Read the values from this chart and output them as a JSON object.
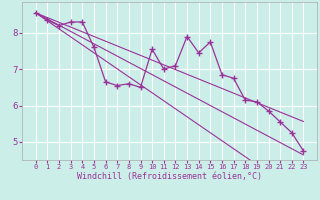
{
  "xlabel": "Windchill (Refroidissement éolien,°C)",
  "background_color": "#cceee8",
  "grid_color": "#ffffff",
  "line_color": "#993399",
  "x": [
    0,
    1,
    2,
    3,
    4,
    5,
    6,
    7,
    8,
    9,
    10,
    11,
    12,
    13,
    14,
    15,
    16,
    17,
    18,
    19,
    20,
    21,
    22,
    23
  ],
  "y_series1": [
    8.55,
    8.35,
    8.2,
    8.3,
    8.3,
    7.6,
    6.65,
    6.55,
    6.6,
    6.5,
    7.55,
    7.0,
    7.1,
    7.9,
    7.45,
    7.75,
    6.85,
    6.75,
    6.15,
    6.1,
    5.85,
    5.55,
    5.25,
    4.75
  ],
  "y_linear1": [
    8.55,
    8.42,
    8.29,
    8.16,
    8.03,
    7.9,
    7.77,
    7.64,
    7.51,
    7.38,
    7.25,
    7.12,
    6.99,
    6.86,
    6.73,
    6.6,
    6.47,
    6.34,
    6.21,
    6.08,
    5.95,
    5.82,
    5.69,
    5.56
  ],
  "y_linear2": [
    8.55,
    8.38,
    8.21,
    8.04,
    7.87,
    7.7,
    7.53,
    7.36,
    7.19,
    7.02,
    6.85,
    6.68,
    6.51,
    6.34,
    6.17,
    6.0,
    5.83,
    5.66,
    5.49,
    5.32,
    5.15,
    4.98,
    4.81,
    4.64
  ],
  "y_linear3": [
    8.55,
    8.33,
    8.11,
    7.89,
    7.67,
    7.45,
    7.23,
    7.01,
    6.79,
    6.57,
    6.35,
    6.13,
    5.91,
    5.69,
    5.47,
    5.25,
    5.03,
    4.81,
    4.59,
    4.37,
    4.15,
    3.93,
    3.71,
    3.49
  ],
  "ylim": [
    4.5,
    8.85
  ],
  "yticks": [
    5,
    6,
    7,
    8
  ],
  "xticks": [
    0,
    1,
    2,
    3,
    4,
    5,
    6,
    7,
    8,
    9,
    10,
    11,
    12,
    13,
    14,
    15,
    16,
    17,
    18,
    19,
    20,
    21,
    22,
    23
  ],
  "xlabel_fontsize": 6.0,
  "xtick_fontsize": 5.0,
  "ytick_fontsize": 6.5
}
